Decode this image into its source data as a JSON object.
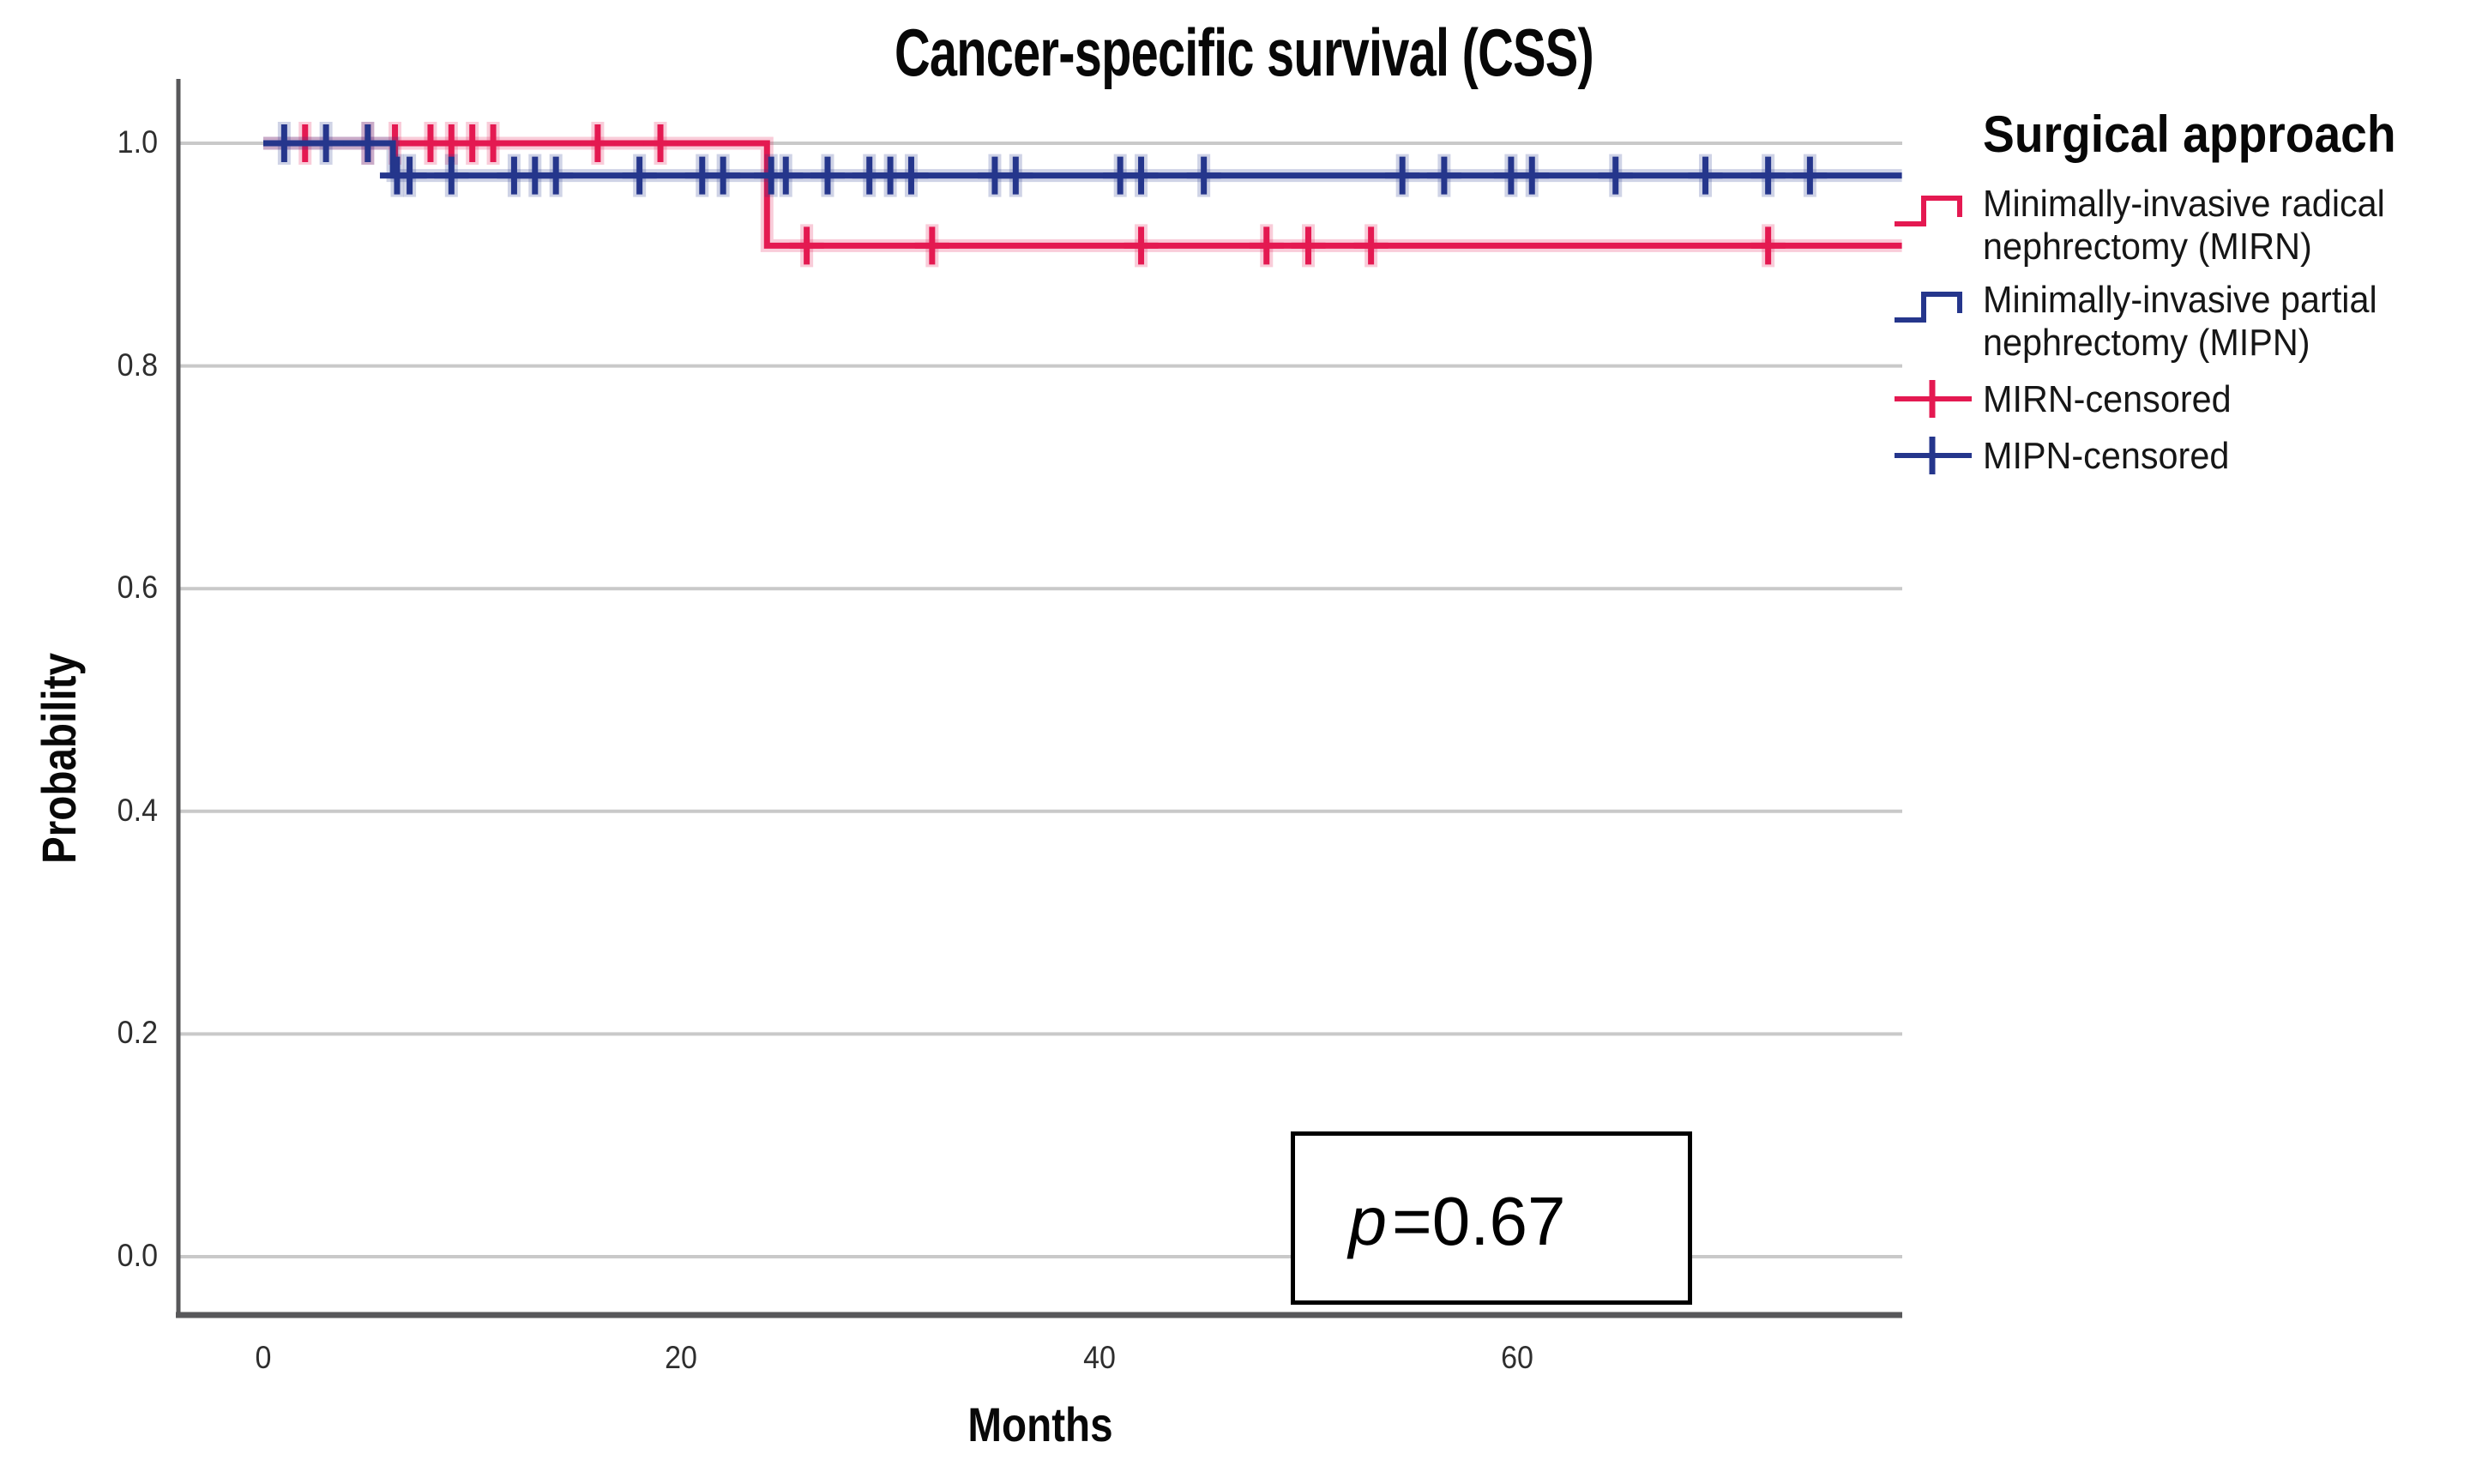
{
  "chart_data": {
    "type": "line",
    "subtype": "kaplan-meier-step",
    "title": "Cancer-specific survival (CSS)",
    "xlabel": "Months",
    "ylabel": "Probability",
    "xlim": [
      0,
      78.4
    ],
    "ylim": [
      0.0,
      1.0
    ],
    "xticks": [
      0,
      20,
      40,
      60
    ],
    "xtick_labels": [
      "0",
      "20",
      "40",
      "60"
    ],
    "yticks": [
      1.0,
      0.8,
      0.6,
      0.4,
      0.2,
      0.0
    ],
    "ytick_labels": [
      "1.0",
      "0.8",
      "0.6",
      "0.4",
      "0.2",
      "0.0"
    ],
    "grid": "horizontal",
    "gridline_color": "#C9C9C9",
    "axis_color": "#58585A",
    "legend_position": "right",
    "series": [
      {
        "name": "Minimally-invasive radical nephrectomy (MIRN)",
        "short_name": "MIRN",
        "color": "#E41951",
        "steps": [
          [
            0,
            1.0
          ],
          [
            24.1,
            1.0
          ],
          [
            24.1,
            0.908
          ],
          [
            78.4,
            0.908
          ]
        ],
        "censored_months": [
          2,
          5,
          6.3,
          8,
          9,
          10,
          11,
          16,
          19,
          26,
          32,
          42,
          48,
          50,
          53,
          72
        ]
      },
      {
        "name": "Minimally-invasive partial nephrectomy (MIPN)",
        "short_name": "MIPN",
        "color": "#25368C",
        "steps": [
          [
            0,
            1.0
          ],
          [
            6.2,
            1.0
          ],
          [
            6.2,
            0.971
          ],
          [
            78.4,
            0.971
          ]
        ],
        "censored_months": [
          1,
          3,
          5,
          6.4,
          7,
          9,
          12,
          13,
          14,
          18,
          21,
          22,
          24.3,
          25,
          27,
          29,
          30,
          31,
          35,
          36,
          41,
          42,
          45,
          54.5,
          56.5,
          59.7,
          60.7,
          64.7,
          69,
          72,
          74
        ]
      }
    ],
    "annotation": {
      "symbol": "p",
      "rest": "=0.67",
      "text": "p=0.67"
    }
  },
  "legend": {
    "title": "Surgical approach",
    "entries": [
      {
        "label": "Minimally-invasive radical nephrectomy (MIRN)",
        "type": "step",
        "series": 0
      },
      {
        "label": "Minimally-invasive partial nephrectomy (MIPN)",
        "type": "step",
        "series": 1
      },
      {
        "label": "MIRN-censored",
        "type": "censor",
        "series": 0
      },
      {
        "label": "MIPN-censored",
        "type": "censor",
        "series": 1
      }
    ]
  }
}
